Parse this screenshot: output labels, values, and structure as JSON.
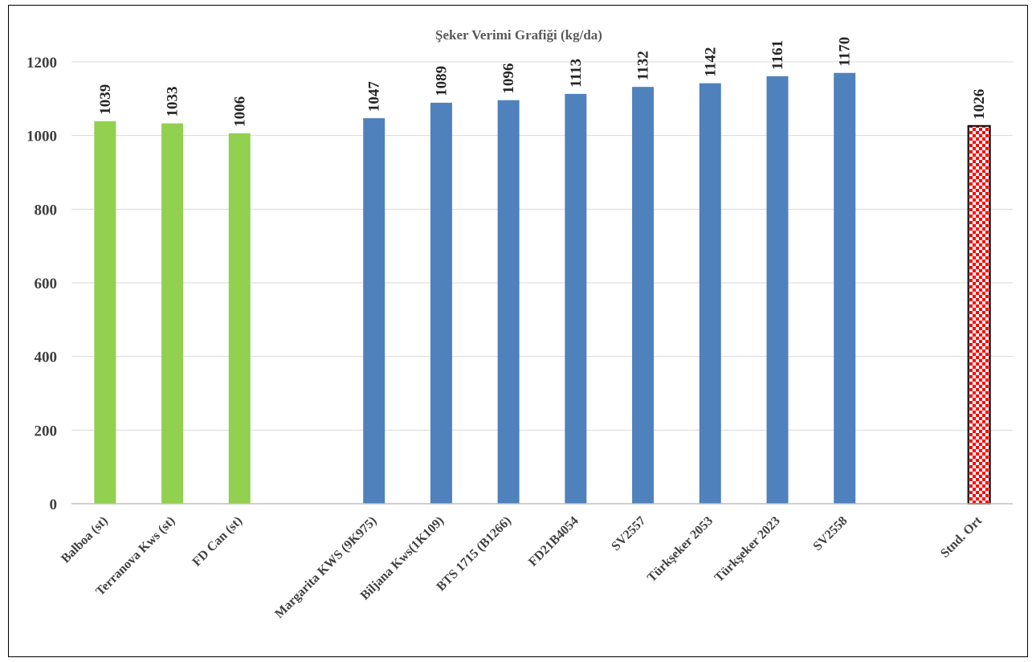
{
  "chart_data": {
    "type": "bar",
    "title": "Şeker Verimi Grafiği (kg/da)",
    "xlabel": "",
    "ylabel": "",
    "ylim": [
      0,
      1200
    ],
    "yticks": [
      0,
      200,
      400,
      600,
      800,
      1000,
      1200
    ],
    "grid": true,
    "legend": "none",
    "categories": [
      "Balboa (st)",
      "Terranova Kws (st)",
      "FD Can (st)",
      "",
      "Margarita KWS (9K975)",
      "Biljana Kws(1K109)",
      "BTS 1715 (B1266)",
      "FD21B4054",
      "SV2557",
      "Türkşeker 2053",
      "Türkşeker 2023",
      "SV2558",
      "",
      "Stnd. Ort"
    ],
    "values": [
      1039,
      1033,
      1006,
      null,
      1047,
      1089,
      1096,
      1113,
      1132,
      1142,
      1161,
      1170,
      null,
      1026
    ],
    "data_labels": [
      "1039",
      "1033",
      "1006",
      "",
      "1047",
      "1089",
      "1096",
      "1113",
      "1132",
      "1142",
      "1161",
      "1170",
      "",
      "1026"
    ],
    "bar_styles": [
      "green",
      "green",
      "green",
      "none",
      "blue",
      "blue",
      "blue",
      "blue",
      "blue",
      "blue",
      "blue",
      "blue",
      "none",
      "checker"
    ],
    "colors": {
      "green": "#92d050",
      "blue": "#4f81bd",
      "checker_fill": "#ff0000",
      "checker_bg": "#ffffff",
      "grid": "#d9d9d9",
      "axis": "#bfbfbf"
    }
  }
}
